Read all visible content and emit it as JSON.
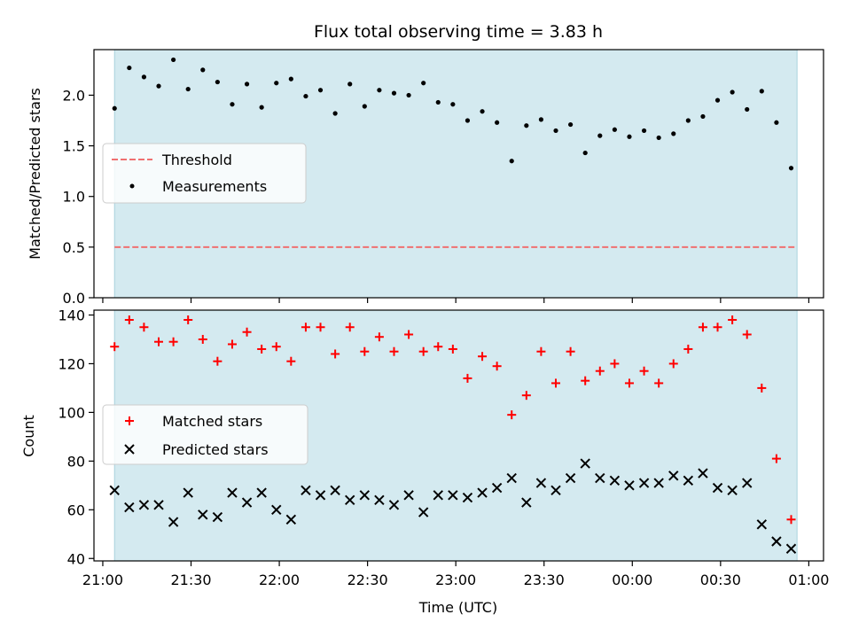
{
  "chart_data": [
    {
      "type": "scatter",
      "title": "Flux total observing time = 3.83 h",
      "ylabel": "Matched/Predicted stars",
      "xlabel": "",
      "ylim": [
        0,
        2.45
      ],
      "xlim": [
        "20:57",
        "01:05"
      ],
      "y_ticks": [
        "0.0",
        "0.5",
        "1.0",
        "1.5",
        "2.0"
      ],
      "shaded_range": [
        "21:04",
        "00:56"
      ],
      "shade_color": "#d4eaf0",
      "legend": {
        "location": "center-left",
        "entries": [
          "Threshold",
          "Measurements"
        ]
      },
      "threshold": {
        "name": "Threshold",
        "value": 0.5,
        "style": "dashed",
        "color": "#f07070",
        "x_range": [
          "21:04",
          "00:56"
        ]
      },
      "series": [
        {
          "name": "Measurements",
          "marker": "dot",
          "color": "#000000",
          "x": [
            "21:04",
            "21:09",
            "21:14",
            "21:19",
            "21:24",
            "21:29",
            "21:34",
            "21:39",
            "21:44",
            "21:49",
            "21:54",
            "21:59",
            "22:04",
            "22:09",
            "22:14",
            "22:19",
            "22:24",
            "22:29",
            "22:34",
            "22:39",
            "22:44",
            "22:49",
            "22:54",
            "22:59",
            "23:04",
            "23:09",
            "23:14",
            "23:19",
            "23:24",
            "23:29",
            "23:34",
            "23:39",
            "23:44",
            "23:49",
            "23:54",
            "23:59",
            "00:04",
            "00:09",
            "00:14",
            "00:19",
            "00:24",
            "00:29",
            "00:34",
            "00:39",
            "00:44",
            "00:49",
            "00:54"
          ],
          "y": [
            1.87,
            2.27,
            2.18,
            2.09,
            2.35,
            2.06,
            2.25,
            2.13,
            1.91,
            2.11,
            1.88,
            2.12,
            2.16,
            1.99,
            2.05,
            1.82,
            2.11,
            1.89,
            2.05,
            2.02,
            2.0,
            2.12,
            1.93,
            1.91,
            1.75,
            1.84,
            1.73,
            1.35,
            1.7,
            1.76,
            1.65,
            1.71,
            1.43,
            1.6,
            1.66,
            1.59,
            1.65,
            1.58,
            1.62,
            1.75,
            1.79,
            1.95,
            2.03,
            1.86,
            2.04,
            1.73,
            1.28
          ]
        }
      ]
    },
    {
      "type": "scatter",
      "title": "",
      "ylabel": "Count",
      "xlabel": "Time (UTC)",
      "ylim": [
        39,
        142
      ],
      "xlim": [
        "20:57",
        "01:05"
      ],
      "y_ticks": [
        "40",
        "60",
        "80",
        "100",
        "120",
        "140"
      ],
      "x_ticks": [
        "21:00",
        "21:30",
        "22:00",
        "22:30",
        "23:00",
        "23:30",
        "00:00",
        "00:30",
        "01:00"
      ],
      "shaded_range": [
        "21:04",
        "00:56"
      ],
      "shade_color": "#d4eaf0",
      "legend": {
        "location": "center-left",
        "entries": [
          "Matched stars",
          "Predicted stars"
        ]
      },
      "series": [
        {
          "name": "Matched stars",
          "marker": "plus",
          "color": "#ff0000",
          "x": [
            "21:04",
            "21:09",
            "21:14",
            "21:19",
            "21:24",
            "21:29",
            "21:34",
            "21:39",
            "21:44",
            "21:49",
            "21:54",
            "21:59",
            "22:04",
            "22:09",
            "22:14",
            "22:19",
            "22:24",
            "22:29",
            "22:34",
            "22:39",
            "22:44",
            "22:49",
            "22:54",
            "22:59",
            "23:04",
            "23:09",
            "23:14",
            "23:19",
            "23:24",
            "23:29",
            "23:34",
            "23:39",
            "23:44",
            "23:49",
            "23:54",
            "23:59",
            "00:04",
            "00:09",
            "00:14",
            "00:19",
            "00:24",
            "00:29",
            "00:34",
            "00:39",
            "00:44",
            "00:49",
            "00:54"
          ],
          "y": [
            127,
            138,
            135,
            129,
            129,
            138,
            130,
            121,
            128,
            133,
            126,
            127,
            121,
            135,
            135,
            124,
            135,
            125,
            131,
            125,
            132,
            125,
            127,
            126,
            114,
            123,
            119,
            99,
            107,
            125,
            112,
            125,
            113,
            117,
            120,
            112,
            117,
            112,
            120,
            126,
            135,
            135,
            138,
            132,
            110,
            81,
            56
          ]
        },
        {
          "name": "Predicted stars",
          "marker": "x",
          "color": "#000000",
          "x": [
            "21:04",
            "21:09",
            "21:14",
            "21:19",
            "21:24",
            "21:29",
            "21:34",
            "21:39",
            "21:44",
            "21:49",
            "21:54",
            "21:59",
            "22:04",
            "22:09",
            "22:14",
            "22:19",
            "22:24",
            "22:29",
            "22:34",
            "22:39",
            "22:44",
            "22:49",
            "22:54",
            "22:59",
            "23:04",
            "23:09",
            "23:14",
            "23:19",
            "23:24",
            "23:29",
            "23:34",
            "23:39",
            "23:44",
            "23:49",
            "23:54",
            "23:59",
            "00:04",
            "00:09",
            "00:14",
            "00:19",
            "00:24",
            "00:29",
            "00:34",
            "00:39",
            "00:44",
            "00:49",
            "00:54"
          ],
          "y": [
            68,
            61,
            62,
            62,
            55,
            67,
            58,
            57,
            67,
            63,
            67,
            60,
            56,
            68,
            66,
            68,
            64,
            66,
            64,
            62,
            66,
            59,
            66,
            66,
            65,
            67,
            69,
            73,
            63,
            71,
            68,
            73,
            79,
            73,
            72,
            70,
            71,
            71,
            74,
            72,
            75,
            69,
            68,
            71,
            54,
            47,
            44
          ]
        }
      ]
    }
  ]
}
